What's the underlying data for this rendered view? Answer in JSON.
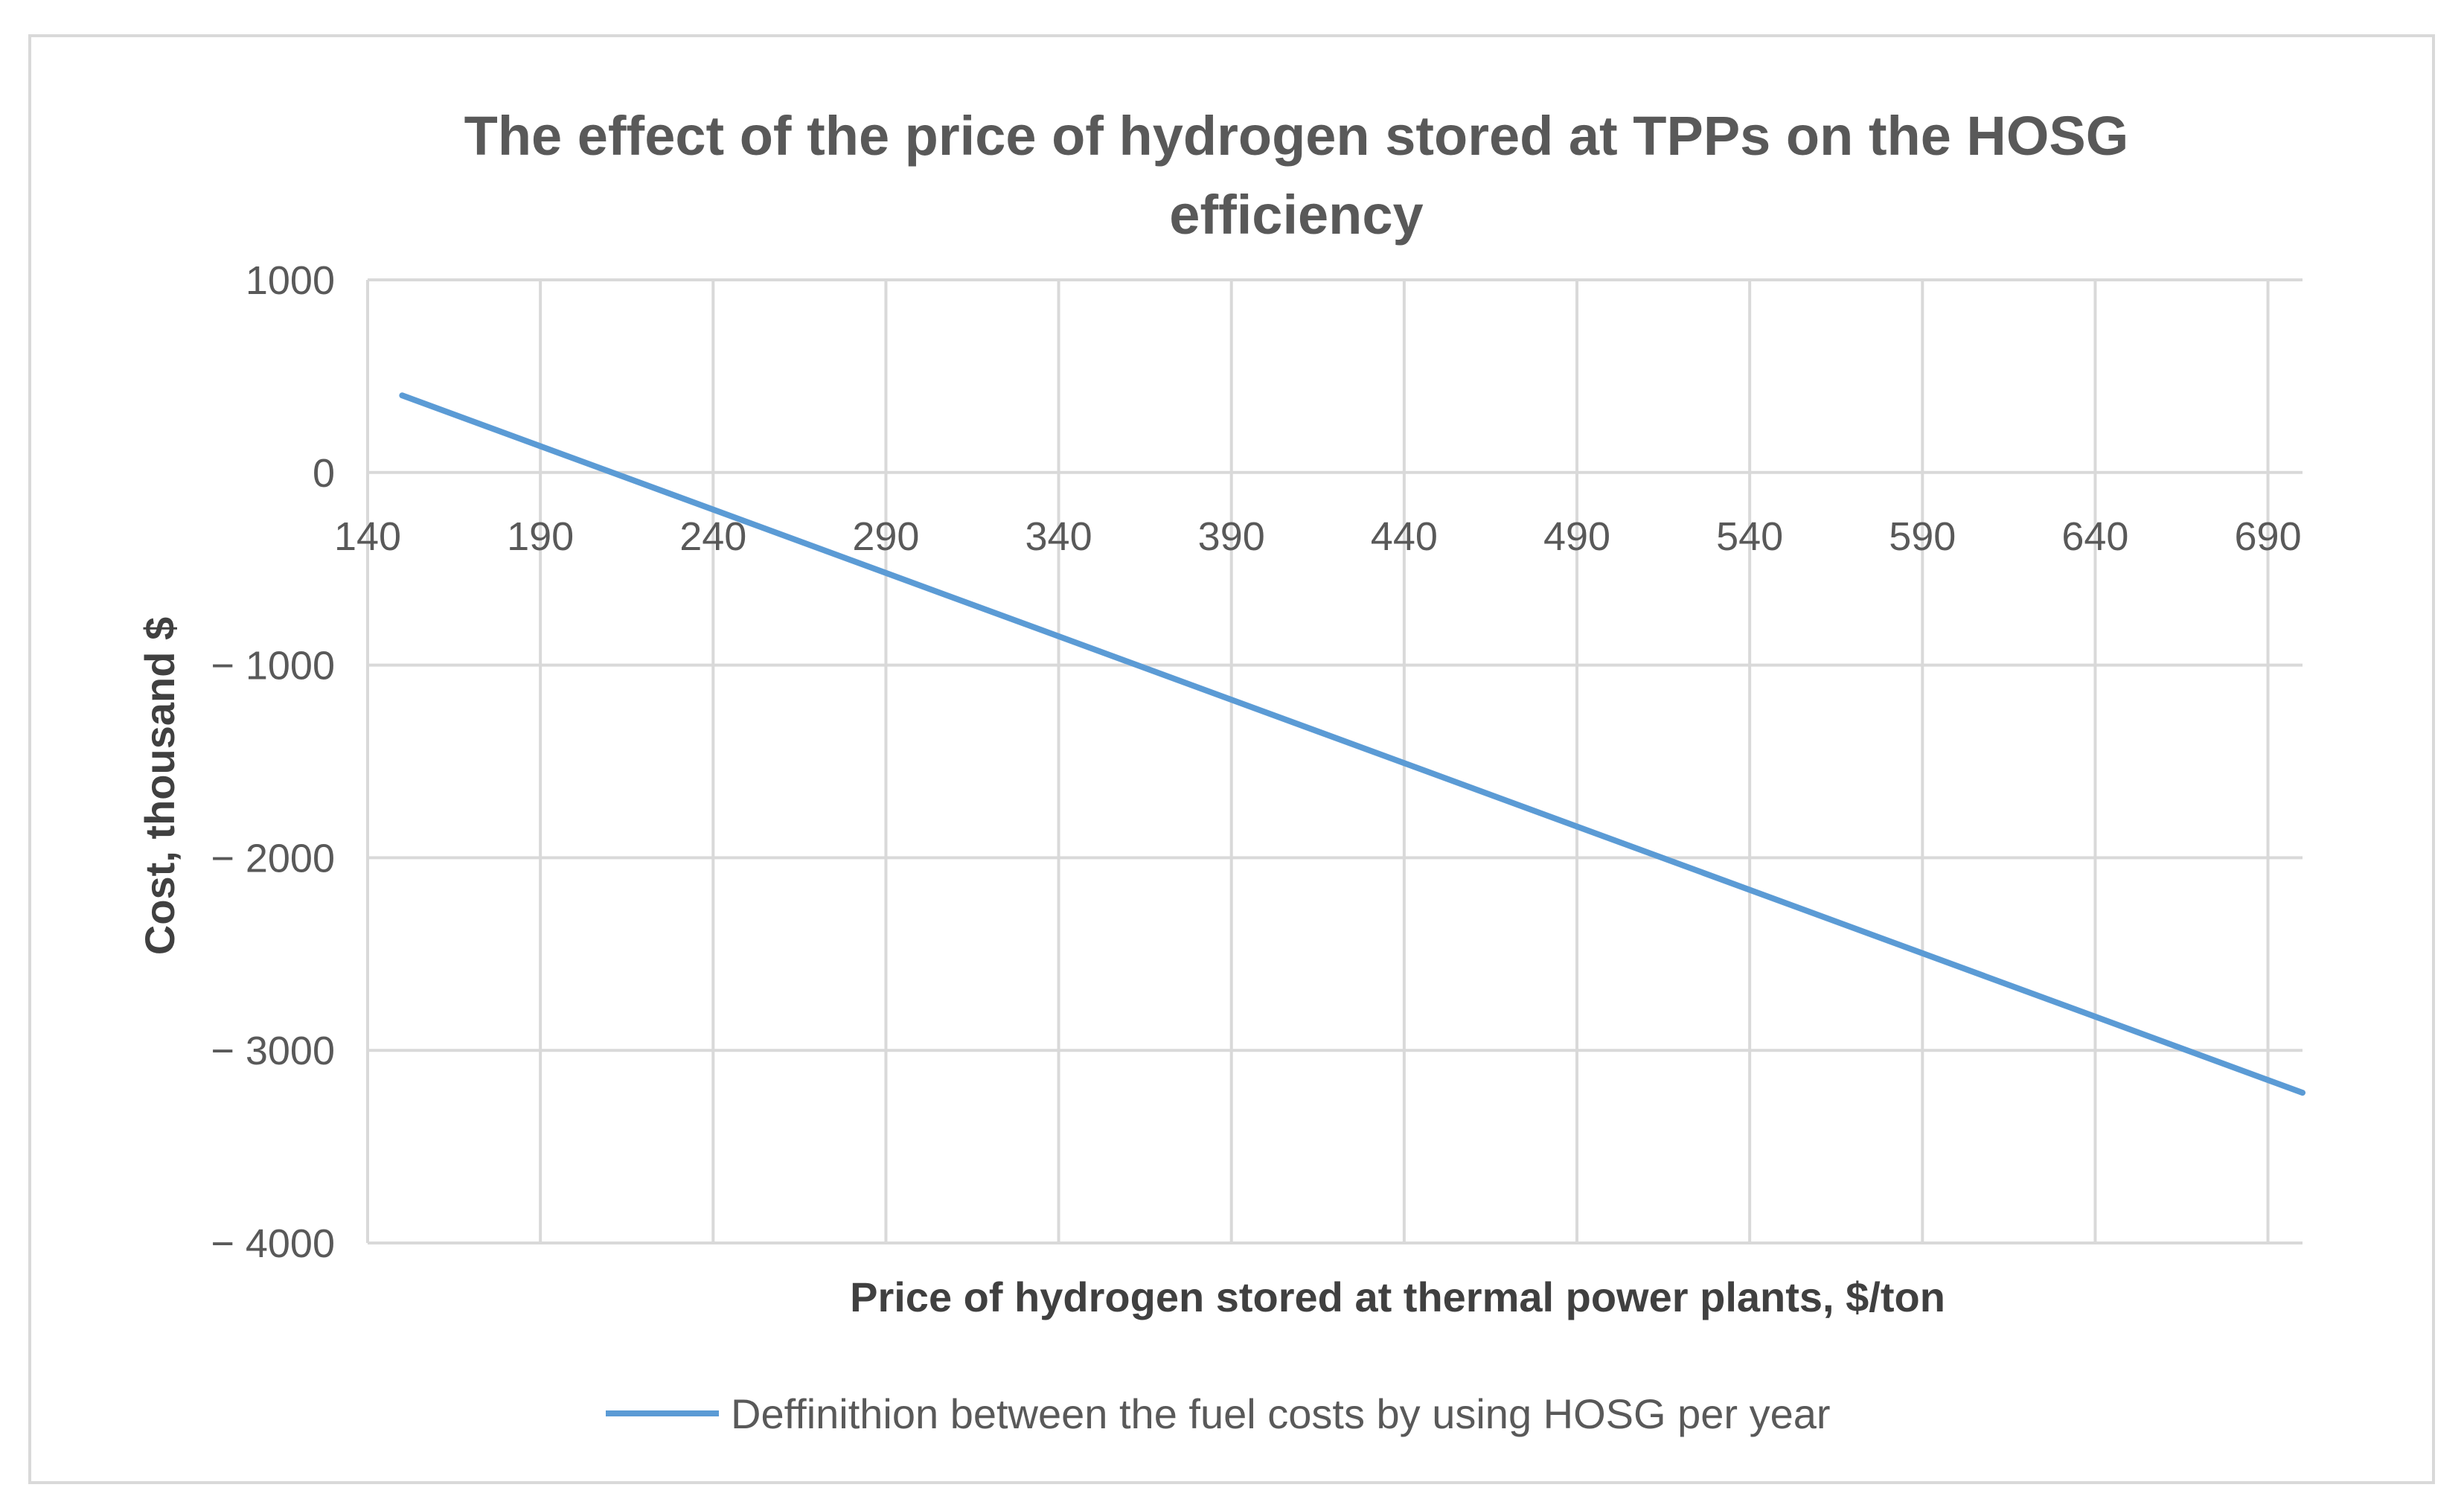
{
  "chart_data": {
    "type": "line",
    "title_lines": [
      "The effect of the price of hydrogen stored at TPPs on the HOSG",
      "efficiency"
    ],
    "xlabel": "Price of hydrogen stored at thermal power plants, $/ton",
    "ylabel": "Cost, thousand $",
    "x_ticks": [
      "140",
      "190",
      "240",
      "290",
      "340",
      "390",
      "440",
      "490",
      "540",
      "590",
      "640",
      "690"
    ],
    "y_ticks": [
      "1000",
      "0",
      "− 1000",
      "− 2000",
      "− 3000",
      "− 4000"
    ],
    "xlim": [
      140,
      700
    ],
    "ylim": [
      -4000,
      1000
    ],
    "grid": true,
    "legend_position": "bottom",
    "series": [
      {
        "name": "Deffinithion between the fuel costs by using HOSG per year",
        "color": "#5b9bd5",
        "x": [
          150,
          700
        ],
        "y": [
          400,
          -3220
        ]
      }
    ]
  }
}
